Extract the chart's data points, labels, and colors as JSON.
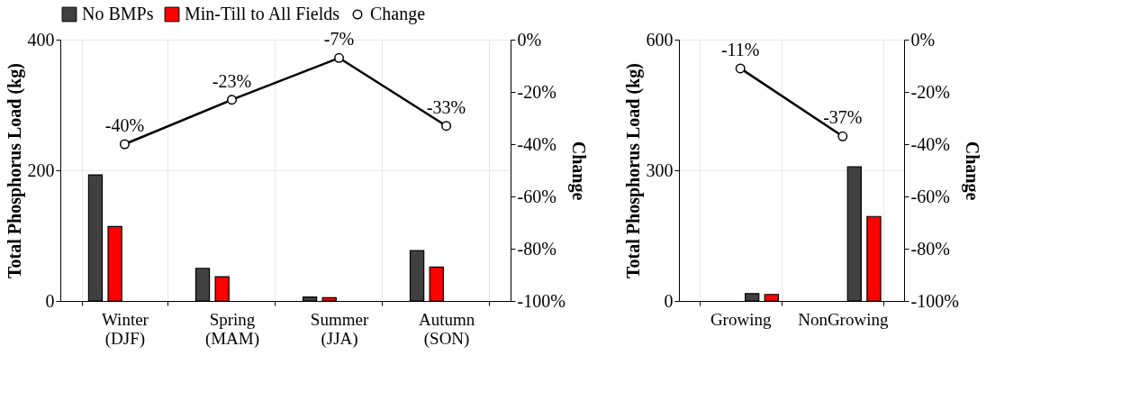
{
  "chart_data": [
    {
      "type": "bar",
      "categories": [
        "Winter (DJF)",
        "Spring (MAM)",
        "Summer (JJA)",
        "Autumn (SON)"
      ],
      "ylabel": "Total Phosphorus Load (kg)",
      "y2label": "Change",
      "ylim": [
        0,
        400
      ],
      "yticks": [
        0,
        200,
        400
      ],
      "y2lim": [
        -100,
        0
      ],
      "y2ticks": [
        {
          "value": -100,
          "label": "-100%"
        },
        {
          "value": -80,
          "label": "-80%"
        },
        {
          "value": -60,
          "label": "-60%"
        },
        {
          "value": -40,
          "label": "-40%"
        },
        {
          "value": -20,
          "label": "-20%"
        },
        {
          "value": 0,
          "label": "0%"
        }
      ],
      "grid": true,
      "legend": "top",
      "series": [
        {
          "name": "No BMPs",
          "color": "#404040",
          "values": [
            193,
            50,
            6,
            77
          ]
        },
        {
          "name": "Min-Till to All Fields",
          "color": "#ff0000",
          "values": [
            114,
            37,
            5,
            52
          ]
        },
        {
          "name": "Change",
          "type": "line",
          "axis": "y2",
          "marker": "circle",
          "color": "#000000",
          "values": [
            -40,
            -23,
            -7,
            -33
          ],
          "value_labels": [
            "-40%",
            "-23%",
            "-7%",
            "-33%"
          ]
        }
      ]
    },
    {
      "type": "bar",
      "categories": [
        "Growing",
        "NonGrowing"
      ],
      "ylabel": "Total Phosphorus Load (kg)",
      "y2label": "Change",
      "ylim": [
        0,
        600
      ],
      "yticks": [
        0,
        300,
        600
      ],
      "y2lim": [
        -100,
        0
      ],
      "y2ticks": [
        {
          "value": -100,
          "label": "-100%"
        },
        {
          "value": -80,
          "label": "-80%"
        },
        {
          "value": -60,
          "label": "-60%"
        },
        {
          "value": -40,
          "label": "-40%"
        },
        {
          "value": -20,
          "label": "-20%"
        },
        {
          "value": 0,
          "label": "0%"
        }
      ],
      "grid": true,
      "series": [
        {
          "color": "#404040",
          "values": [
            17,
            308
          ]
        },
        {
          "color": "#ff0000",
          "values": [
            15,
            194
          ]
        },
        {
          "type": "line",
          "axis": "y2",
          "marker": "circle",
          "color": "#000000",
          "values": [
            -11,
            -37
          ],
          "value_labels": [
            "-11%",
            "-37%"
          ]
        }
      ]
    }
  ]
}
